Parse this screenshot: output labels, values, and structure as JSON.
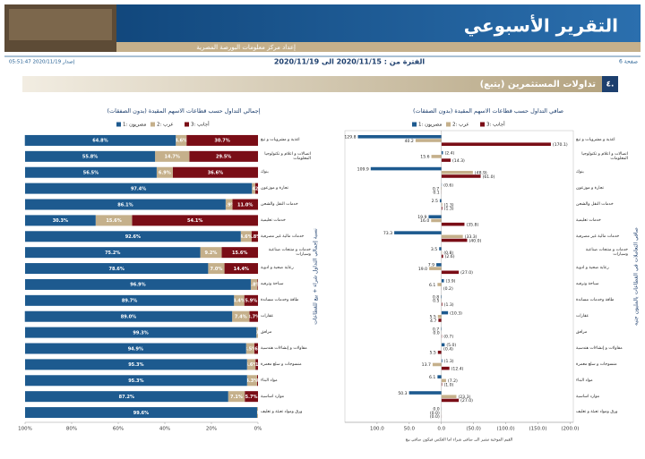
{
  "header": {
    "title": "التقرير الأسبوعي",
    "subtitle": "إعداد مركز معلومات البورصة المصرية",
    "page": "صفحة 6",
    "period": "الفترة من : 2020/11/15 الى 2020/11/19",
    "issued": "إصدار 2020/11/19 05:51:47"
  },
  "section": {
    "number": "٤.",
    "title": "تداولات المستثمرين (يتبع)"
  },
  "chart_data": [
    {
      "type": "bar",
      "stacked": true,
      "title": "إجمالي التداول حسب قطاعات الاسهم المقيدة (بدون الصفقات)",
      "y_label": "نسبة إجمالي التداول شراء + بيع للقطاعات",
      "categories": [
        "اغذية و مشروبات و تبغ",
        "اتصالات و اعلام و تكنولوجيا المعلومات",
        "بنوك",
        "تجارة و موزعون",
        "خدمات النقل والشحن",
        "خدمات تعليمية",
        "خدمات مالية غير مصرفية",
        "خدمات و منتجات صناعية وسيارات",
        "رعاية صحية و ادوية",
        "سياحة وترفيه",
        "طاقة وخدمات مساندة",
        "عقارات",
        "مرافق",
        "مقاولات و إنشاءات هندسية",
        "منسوجات و سلع معمرة",
        "مواد البناء",
        "موارد اساسية",
        "ورق ومواد تعبئة و تغليف"
      ],
      "series": [
        {
          "name": "مصريون :1",
          "color": "#1d5a8f",
          "values": [
            64.8,
            55.8,
            56.5,
            97.4,
            86.1,
            30.3,
            92.6,
            75.2,
            78.6,
            96.9,
            89.7,
            89.0,
            99.3,
            94.9,
            95.3,
            95.3,
            87.2,
            99.6
          ],
          "value_labels": [
            "64.8%",
            "55.8%",
            "56.5%",
            "97.4%",
            "86.1%",
            "30.3%",
            "92.6%",
            "75.2%",
            "78.6%",
            "96.9%",
            "89.7%",
            "89.0%",
            "99.3%",
            "94.9%",
            "95.3%",
            "95.3%",
            "87.2%",
            "99.6%"
          ]
        },
        {
          "name": "عرب :2",
          "color": "#c5b08b",
          "values": [
            4.6,
            14.7,
            6.9,
            1.4,
            2.9,
            15.6,
            4.6,
            9.2,
            7.0,
            2.8,
            4.4,
            7.4,
            0.7,
            3.5,
            3.6,
            4.3,
            7.1,
            0.4
          ],
          "value_labels": [
            "4.6%",
            "14.7%",
            "6.9%",
            "1.4%",
            "2.9%",
            "15.6%",
            "4.6%",
            "9.2%",
            "7.0%",
            "2.8%",
            "4.4%",
            "7.4%",
            "0.7%",
            "3.5%",
            "3.6%",
            "4.3%",
            "7.1%",
            "0.4%"
          ]
        },
        {
          "name": "أجانب :3",
          "color": "#7a0d16",
          "values": [
            30.7,
            29.5,
            36.6,
            1.2,
            11.0,
            54.1,
            2.8,
            15.6,
            14.4,
            0.3,
            5.9,
            3.7,
            0.0,
            1.6,
            1.1,
            0.4,
            5.7,
            0.0
          ],
          "value_labels": [
            "30.7%",
            "29.5%",
            "36.6%",
            "1.2%",
            "11.0%",
            "54.1%",
            "2.8%",
            "15.6%",
            "14.4%",
            "0.3%",
            "5.9%",
            "3.7%",
            "0.0%",
            "1.6%",
            "1.1%",
            "0.4%",
            "5.7%",
            "0.0%"
          ]
        }
      ],
      "xlim": [
        100,
        0
      ],
      "xticks": [
        {
          "value": 100,
          "label": "100%"
        },
        {
          "value": 80,
          "label": "80%"
        },
        {
          "value": 60,
          "label": "60%"
        },
        {
          "value": 40,
          "label": "40%"
        },
        {
          "value": 20,
          "label": "20%"
        },
        {
          "value": 0,
          "label": "0%"
        }
      ]
    },
    {
      "type": "bar",
      "stacked": false,
      "title": "صافي التداول حسب قطاعات الاسهم المقيدة (بدون الصفقات)",
      "y_label": "صافي التعاملات في القطاعات بالمليون جنيه",
      "x_label": "القيم الموجبة تشير الى صافي شراء اما العكس فيكون صافي بيع",
      "categories": [
        "اغذية و مشروبات و تبغ",
        "اتصالات و اعلام و تكنولوجيا المعلومات",
        "بنوك",
        "تجارة و موزعون",
        "خدمات النقل والشحن",
        "خدمات تعليمية",
        "خدمات مالية غير مصرفية",
        "خدمات و منتجات صناعية وسيارات",
        "رعاية صحية و ادوية",
        "سياحة وترفيه",
        "طاقة وخدمات مساندة",
        "عقارات",
        "مرافق",
        "مقاولات و إنشاءات هندسية",
        "منسوجات و سلع معمرة",
        "مواد البناء",
        "موارد اساسية",
        "ورق ومواد تعبئة و تغليف"
      ],
      "series": [
        {
          "name": "مصريون :1",
          "color": "#1d5a8f",
          "values": [
            129.8,
            -2.4,
            109.9,
            -0.6,
            2.5,
            19.9,
            73.3,
            3.5,
            7.9,
            -3.9,
            0.8,
            -10.3,
            0.7,
            -5.0,
            -1.3,
            6.1,
            50.3,
            0.0
          ],
          "value_labels": [
            "129.8",
            "(2.4)",
            "109.9",
            "(0.6)",
            "2.5",
            "19.9",
            "73.3",
            "3.5",
            "7.9",
            "(3.9)",
            "0.8",
            "(10.3)",
            "0.7",
            "(5.0)",
            "(1.3)",
            "6.1",
            "50.3",
            "0.0"
          ]
        },
        {
          "name": "عرب :2",
          "color": "#c5b08b",
          "values": [
            40.2,
            15.6,
            -48.9,
            0.7,
            -1.3,
            16.0,
            -33.3,
            -0.8,
            19.0,
            6.1,
            0.5,
            5.5,
            0.0,
            -0.4,
            13.7,
            -7.2,
            -23.3,
            0.0
          ],
          "value_labels": [
            "40.2",
            "15.6",
            "(48.9)",
            "0.7",
            "(1.3)",
            "16.0",
            "(33.3)",
            "(0.8)",
            "19.0",
            "6.1",
            "0.5",
            "5.5",
            "0.0",
            "(0.4)",
            "13.7",
            "(7.2)",
            "(23.3)",
            "(0.0)"
          ]
        },
        {
          "name": "أجانب :3",
          "color": "#7a0d16",
          "values": [
            -170.1,
            -14.3,
            -61.0,
            0.1,
            -1.3,
            -35.8,
            -40.0,
            -2.6,
            -27.0,
            -0.2,
            -1.3,
            4.7,
            -0.7,
            5.5,
            -12.4,
            -1.0,
            -27.0,
            0.0
          ],
          "value_labels": [
            "(170.1)",
            "(14.3)",
            "(61.0)",
            "0.1",
            "(1.3)",
            "(35.8)",
            "(40.0)",
            "(2.6)",
            "(27.0)",
            "(0.2)",
            "(1.3)",
            "4.7",
            "(0.7)",
            "5.5",
            "(12.4)",
            "(1.0)",
            "(27.0)",
            "(0.0)"
          ]
        }
      ],
      "xlim": [
        150,
        -205
      ],
      "xticks": [
        {
          "value": 100,
          "label": "100.0"
        },
        {
          "value": 50,
          "label": "50.0"
        },
        {
          "value": 0,
          "label": "0.0"
        },
        {
          "value": -50,
          "label": "(50.0)"
        },
        {
          "value": -100,
          "label": "(100.0)"
        },
        {
          "value": -150,
          "label": "(150.0)"
        },
        {
          "value": -200,
          "label": "(200.0)"
        }
      ]
    }
  ]
}
